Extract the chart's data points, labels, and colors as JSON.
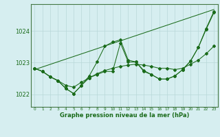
{
  "title": "Graphe pression niveau de la mer (hPa)",
  "bg_color": "#d6eef0",
  "plot_bg_color": "#d6eef0",
  "grid_color": "#b8d8d8",
  "line_color": "#1a6b1a",
  "x_labels": [
    "0",
    "1",
    "2",
    "3",
    "4",
    "5",
    "6",
    "7",
    "8",
    "9",
    "10",
    "11",
    "12",
    "13",
    "14",
    "15",
    "16",
    "17",
    "18",
    "19",
    "20",
    "21",
    "22",
    "23"
  ],
  "y_ticks": [
    1022,
    1023,
    1024
  ],
  "ylim": [
    1021.6,
    1024.85
  ],
  "xlim": [
    -0.5,
    23.5
  ],
  "trend_line": {
    "x0": 0,
    "y0": 1022.78,
    "x1": 23,
    "y1": 1024.68
  },
  "series_jagged": [
    1022.82,
    1022.72,
    1022.55,
    1022.42,
    1022.18,
    1022.02,
    1022.28,
    1022.58,
    1023.02,
    1023.52,
    1023.65,
    1023.72,
    1023.08,
    1023.02,
    1022.75,
    1022.62,
    1022.48,
    1022.48,
    1022.58,
    1022.78,
    1023.05,
    1023.48,
    1024.08,
    1024.62
  ],
  "series_smooth": [
    1022.82,
    1022.72,
    1022.55,
    1022.43,
    1022.28,
    1022.22,
    1022.38,
    1022.52,
    1022.65,
    1022.75,
    1022.82,
    1022.88,
    1022.92,
    1022.95,
    1022.92,
    1022.88,
    1022.82,
    1022.82,
    1022.78,
    1022.82,
    1022.95,
    1023.08,
    1023.28,
    1023.52
  ],
  "series_mid": [
    1022.82,
    1022.72,
    1022.55,
    1022.43,
    1022.18,
    1022.02,
    1022.28,
    1022.52,
    1022.62,
    1022.72,
    1022.72,
    1023.62,
    1023.02,
    1023.02,
    1022.72,
    1022.62,
    1022.48,
    1022.48,
    1022.58,
    1022.78,
    1023.05,
    1023.48,
    1024.05,
    1024.58
  ]
}
